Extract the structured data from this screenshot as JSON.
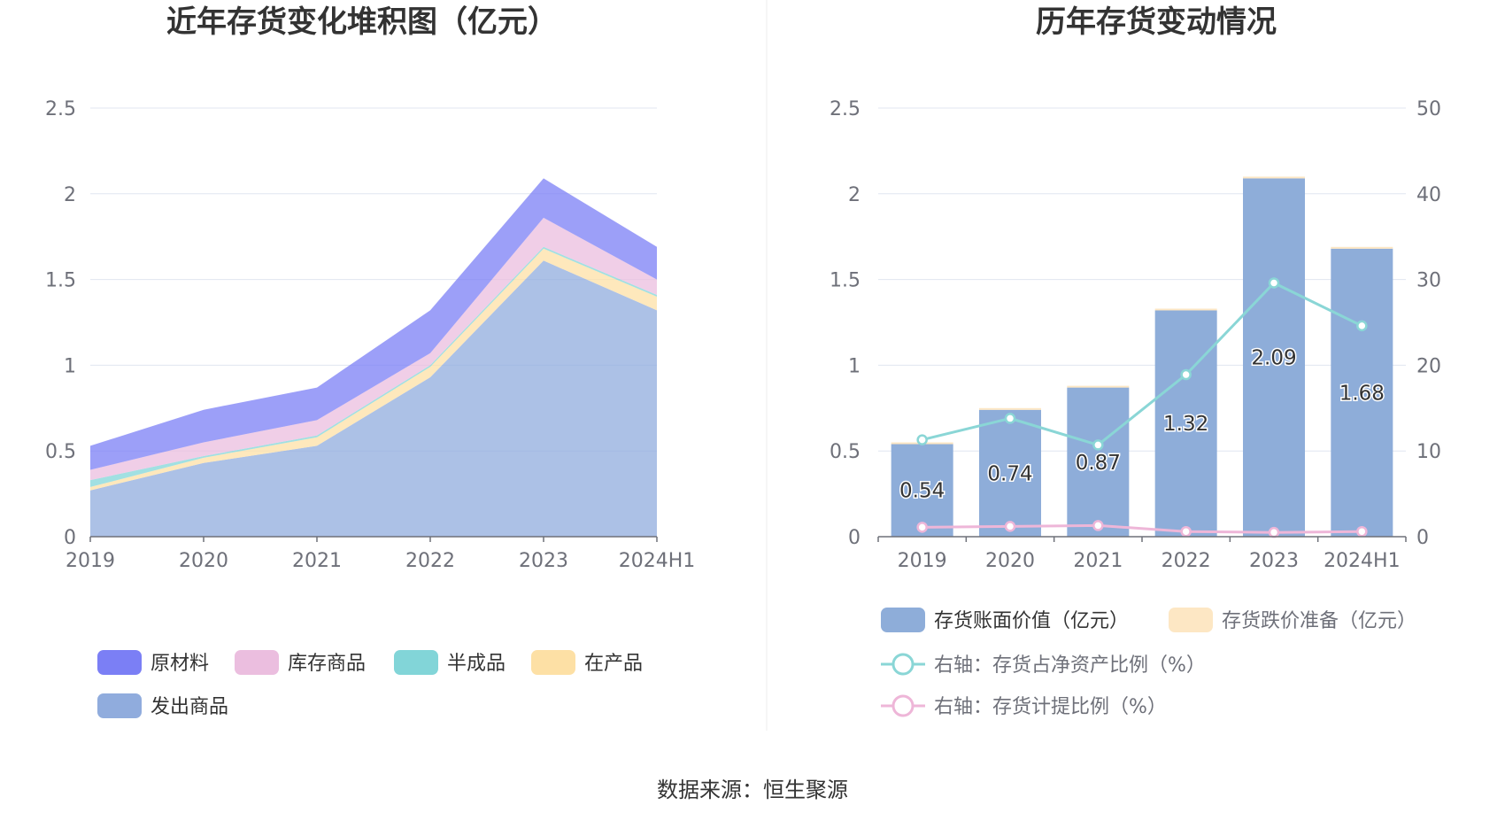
{
  "left_chart": {
    "title": "近年存货变化堆积图（亿元）",
    "legend": [
      {
        "name": "原材料",
        "color": "#7b7ff5"
      },
      {
        "name": "库存商品",
        "color": "#ebbedf"
      },
      {
        "name": "半成品",
        "color": "#82d5d8"
      },
      {
        "name": "在产品",
        "color": "#fde0a5"
      },
      {
        "name": "发出商品",
        "color": "#90acdd"
      }
    ]
  },
  "right_chart": {
    "title": "历年存货变动情况",
    "legend": [
      {
        "name": "存货账面价值（亿元）",
        "color": "#8eadd9",
        "style": "bar"
      },
      {
        "name": "存货跌价准备（亿元）",
        "color": "#fde7c4",
        "style": "bar"
      },
      {
        "name": "右轴：存货占净资产比例（%）",
        "color": "#8ad6d6",
        "style": "line"
      },
      {
        "name": "右轴：存货计提比例（%）",
        "color": "#eeb6d8",
        "style": "line"
      }
    ]
  },
  "source_text": "数据来源：恒生聚源",
  "chart_data": [
    {
      "type": "area",
      "stacked": true,
      "title": "近年存货变化堆积图（亿元）",
      "categories": [
        "2019",
        "2020",
        "2021",
        "2022",
        "2023",
        "2024H1"
      ],
      "ylim": [
        0,
        2.5
      ],
      "yticks": [
        "0",
        "0.5",
        "1",
        "1.5",
        "2",
        "2.5"
      ],
      "grid": true,
      "legend_position": "bottom",
      "series": [
        {
          "name": "发出商品",
          "color": "#90acdd",
          "values": [
            0.27,
            0.43,
            0.53,
            0.93,
            1.61,
            1.32
          ]
        },
        {
          "name": "在产品",
          "color": "#fde0a5",
          "values": [
            0.02,
            0.03,
            0.05,
            0.06,
            0.07,
            0.08
          ]
        },
        {
          "name": "半成品",
          "color": "#82d5d8",
          "values": [
            0.04,
            0.01,
            0.01,
            0.01,
            0.01,
            0.01
          ]
        },
        {
          "name": "库存商品",
          "color": "#ebbedf",
          "values": [
            0.06,
            0.08,
            0.09,
            0.07,
            0.17,
            0.09
          ]
        },
        {
          "name": "原材料",
          "color": "#7b7ff5",
          "values": [
            0.14,
            0.19,
            0.19,
            0.25,
            0.23,
            0.19
          ]
        }
      ]
    },
    {
      "type": "bar",
      "title": "历年存货变动情况",
      "categories": [
        "2019",
        "2020",
        "2021",
        "2022",
        "2023",
        "2024H1"
      ],
      "ylim": [
        0,
        2.5
      ],
      "yticks": [
        "0",
        "0.5",
        "1",
        "1.5",
        "2",
        "2.5"
      ],
      "y2lim": [
        0,
        50
      ],
      "y2ticks": [
        "0",
        "10",
        "20",
        "30",
        "40",
        "50"
      ],
      "grid": true,
      "legend_position": "bottom",
      "series": [
        {
          "name": "存货账面价值（亿元）",
          "type": "bar",
          "axis": "left",
          "color": "#8eadd9",
          "values": [
            0.54,
            0.74,
            0.87,
            1.32,
            2.09,
            1.68
          ],
          "labels": [
            "0.54",
            "0.74",
            "0.87",
            "1.32",
            "2.09",
            "1.68"
          ]
        },
        {
          "name": "存货跌价准备（亿元）",
          "type": "bar",
          "axis": "left",
          "color": "#fde7c4",
          "values": [
            0.01,
            0.01,
            0.01,
            0.01,
            0.01,
            0.01
          ]
        },
        {
          "name": "右轴：存货占净资产比例（%）",
          "type": "line",
          "axis": "right",
          "color": "#8ad6d6",
          "values": [
            11.3,
            13.8,
            10.7,
            18.9,
            29.6,
            24.6
          ]
        },
        {
          "name": "右轴：存货计提比例（%）",
          "type": "line",
          "axis": "right",
          "color": "#eeb6d8",
          "values": [
            1.1,
            1.2,
            1.3,
            0.6,
            0.5,
            0.6
          ]
        }
      ]
    }
  ]
}
